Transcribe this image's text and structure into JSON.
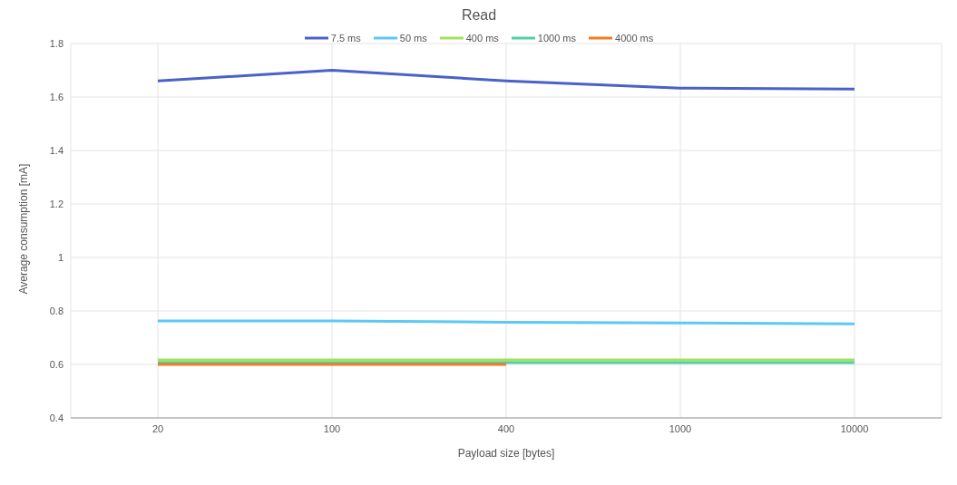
{
  "chart_data": {
    "type": "line",
    "title": "Read",
    "xlabel": "Payload size [bytes]",
    "ylabel": "Average consumption [mA]",
    "categories": [
      "20",
      "100",
      "400",
      "1000",
      "10000"
    ],
    "series": [
      {
        "name": "7.5 ms",
        "color": "#4a61c9",
        "values": [
          1.66,
          1.7,
          1.66,
          1.633,
          1.63
        ]
      },
      {
        "name": "50 ms",
        "color": "#5bc8f5",
        "values": [
          0.763,
          0.763,
          0.758,
          0.755,
          0.752
        ]
      },
      {
        "name": "400 ms",
        "color": "#a5e05a",
        "values": [
          0.617,
          0.617,
          0.617,
          0.617,
          0.617
        ]
      },
      {
        "name": "1000 ms",
        "color": "#4fd1a5",
        "values": [
          0.607,
          0.607,
          0.607,
          0.607,
          0.607
        ]
      },
      {
        "name": "4000 ms",
        "color": "#f47b20",
        "values": [
          0.6,
          0.6,
          0.6,
          null,
          null
        ]
      }
    ],
    "ylim": [
      0.4,
      1.8
    ],
    "yticks": [
      0.4,
      0.6,
      0.8,
      1,
      1.2,
      1.4,
      1.6,
      1.8
    ],
    "grid": true,
    "legend": "top",
    "marker": "none",
    "line_style": "solid"
  }
}
